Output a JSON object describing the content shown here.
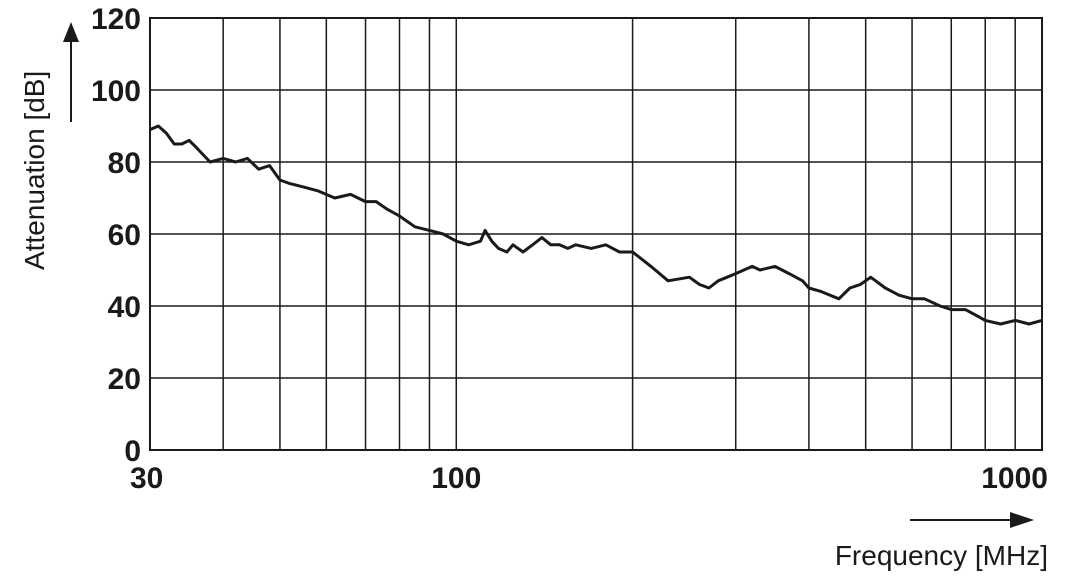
{
  "chart_data": {
    "type": "line",
    "xlabel": "Frequency [MHz]",
    "ylabel": "Attenuation [dB]",
    "xscale": "log",
    "xlim": [
      30,
      1000
    ],
    "ylim": [
      0,
      120
    ],
    "grid": true,
    "legend": "none",
    "x_tick_labels": [
      "30",
      "100",
      "1000"
    ],
    "y_tick_labels": [
      "0",
      "20",
      "40",
      "60",
      "80",
      "100",
      "120"
    ],
    "x_gridlines": [
      40,
      50,
      60,
      70,
      80,
      90,
      100,
      200,
      300,
      400,
      500,
      600,
      700,
      800,
      900
    ],
    "y_gridlines": [
      20,
      40,
      60,
      80,
      100
    ],
    "colors": {
      "line": "#1a1a1a",
      "grid": "#1a1a1a"
    },
    "series": [
      {
        "x": [
          30,
          31,
          32,
          33,
          34,
          35,
          36,
          38,
          40,
          42,
          44,
          46,
          48,
          50,
          52,
          55,
          58,
          62,
          66,
          70,
          73,
          76,
          80,
          85,
          90,
          95,
          100,
          105,
          110,
          112,
          115,
          118,
          122,
          125,
          130,
          135,
          140,
          145,
          150,
          155,
          160,
          170,
          180,
          190,
          200,
          215,
          230,
          250,
          260,
          270,
          280,
          290,
          300,
          320,
          330,
          350,
          370,
          390,
          400,
          420,
          450,
          470,
          490,
          510,
          540,
          570,
          600,
          630,
          670,
          700,
          740,
          780,
          800,
          850,
          900,
          950,
          1000
        ],
        "y": [
          89,
          90,
          88,
          85,
          85,
          86,
          84,
          80,
          81,
          80,
          81,
          78,
          79,
          75,
          74,
          73,
          72,
          70,
          71,
          69,
          69,
          67,
          65,
          62,
          61,
          60,
          58,
          57,
          58,
          61,
          58,
          56,
          55,
          57,
          55,
          57,
          59,
          57,
          57,
          56,
          57,
          56,
          57,
          55,
          55,
          51,
          47,
          48,
          46,
          45,
          47,
          48,
          49,
          51,
          50,
          51,
          49,
          47,
          45,
          44,
          42,
          45,
          46,
          48,
          45,
          43,
          42,
          42,
          40,
          39,
          39,
          37,
          36,
          35,
          36,
          35,
          36
        ]
      }
    ]
  }
}
